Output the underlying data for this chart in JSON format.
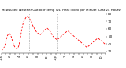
{
  "title": "Milwaukee Weather Outdoor Temp (vs) Heat Index per Minute (Last 24 Hours)",
  "line_color": "#ff0000",
  "line_style": "--",
  "line_width": 0.6,
  "bg_color": "#ffffff",
  "vline_color": "#888888",
  "vline_style": ":",
  "vline_positions": [
    0.27,
    0.54
  ],
  "ylim": [
    28,
    82
  ],
  "yticks": [
    30,
    40,
    50,
    60,
    70,
    80
  ],
  "ytick_labels": [
    "30",
    "40",
    "50",
    "60",
    "70",
    "80"
  ],
  "ylabel_fontsize": 3.0,
  "xlabel_fontsize": 2.5,
  "title_fontsize": 2.8,
  "y": [
    31,
    32,
    33,
    35,
    38,
    42,
    47,
    51,
    53,
    54,
    53,
    51,
    47,
    43,
    39,
    37,
    35,
    34,
    34,
    35,
    38,
    43,
    50,
    57,
    63,
    68,
    71,
    73,
    75,
    76,
    76,
    75,
    74,
    72,
    70,
    67,
    64,
    62,
    60,
    58,
    56,
    55,
    54,
    53,
    52,
    53,
    54,
    55,
    57,
    58,
    59,
    60,
    61,
    60,
    59,
    58,
    56,
    54,
    52,
    50,
    49,
    48,
    47,
    46,
    46,
    47,
    48,
    49,
    50,
    51,
    52,
    53,
    54,
    55,
    56,
    57,
    57,
    56,
    55,
    54,
    53,
    52,
    51,
    50,
    49,
    48,
    47,
    46,
    45,
    44,
    43,
    42,
    41,
    40,
    39,
    38,
    37,
    36,
    36,
    37,
    38,
    39,
    40,
    41,
    42,
    43,
    44,
    45,
    46,
    47,
    47,
    47,
    46,
    45,
    44,
    43,
    42,
    41,
    40,
    39
  ],
  "xtick_labels": [
    "12a",
    "",
    "2",
    "",
    "4",
    "",
    "6",
    "",
    "8",
    "",
    "10",
    "",
    "12p",
    "",
    "2",
    "",
    "4",
    "",
    "6",
    "",
    "8",
    "",
    "10",
    ""
  ],
  "xtick_count": 24,
  "figwidth": 1.6,
  "figheight": 0.87,
  "dpi": 100
}
